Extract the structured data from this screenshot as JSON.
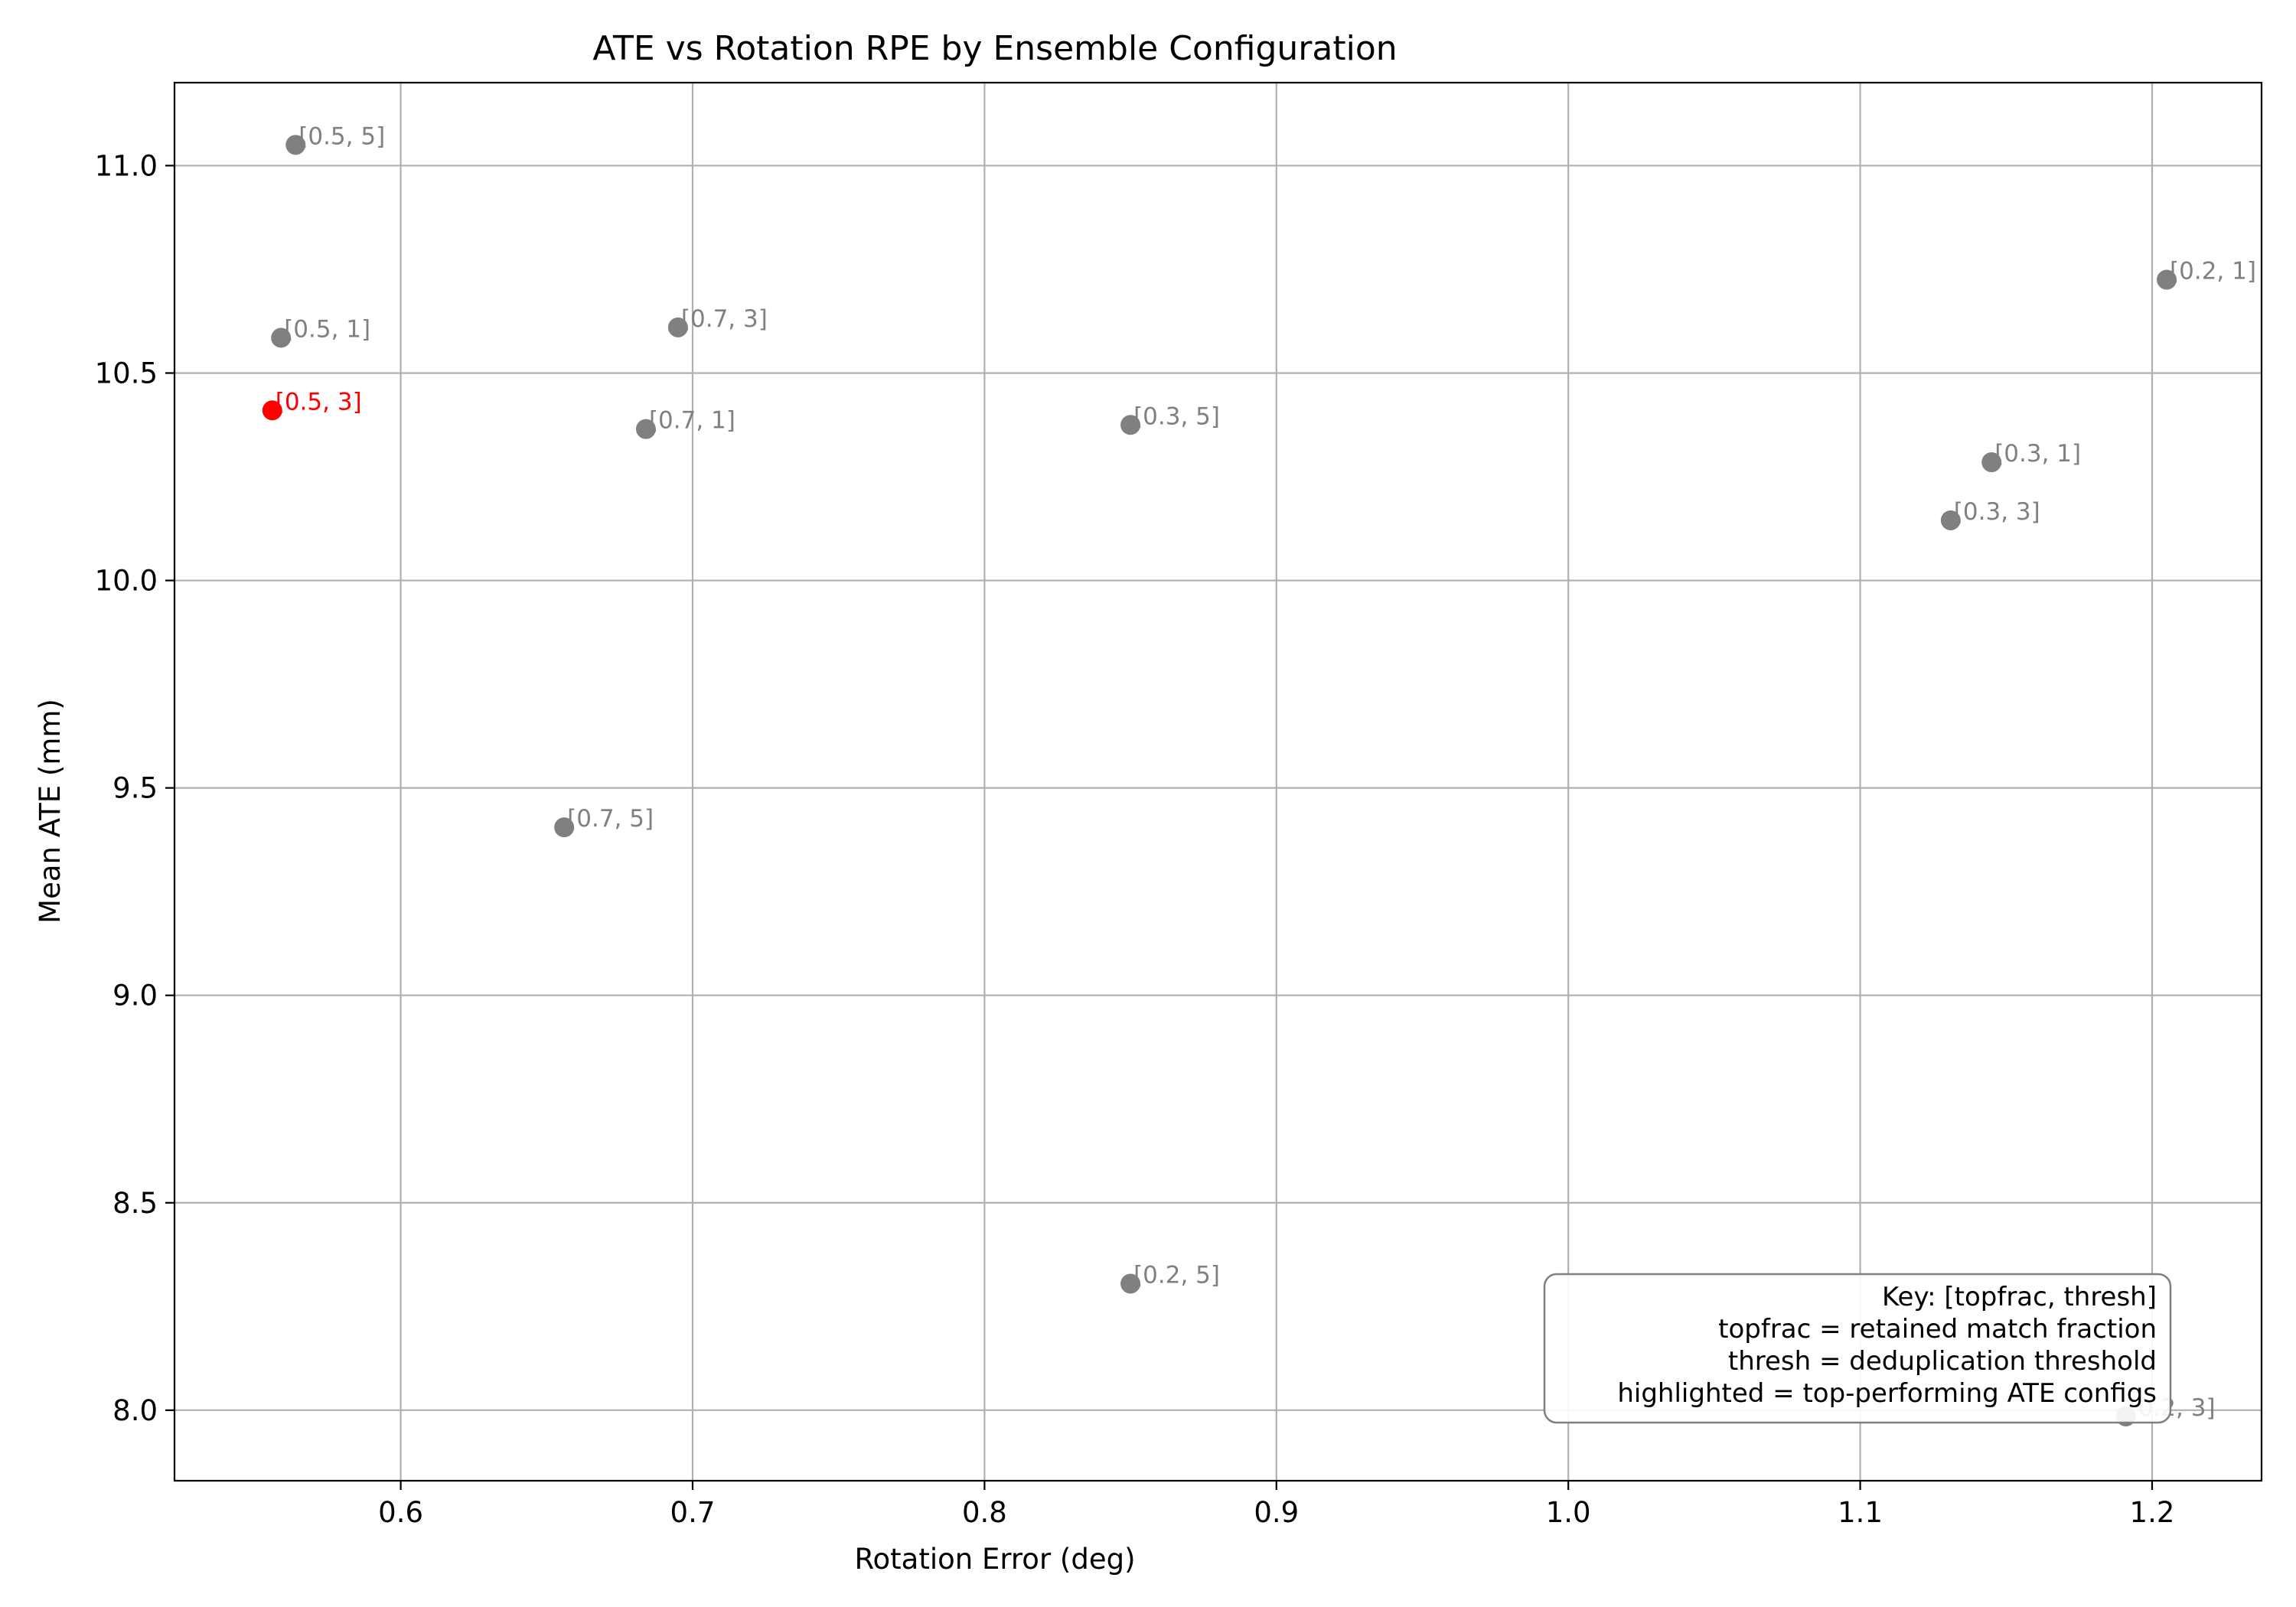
{
  "chart_data": {
    "type": "scatter",
    "title": "ATE vs Rotation RPE by Ensemble Configuration",
    "xlabel": "Rotation Error (deg)",
    "ylabel": "Mean ATE (mm)",
    "xlim": [
      0.5225,
      1.2375
    ],
    "ylim": [
      7.83,
      11.2
    ],
    "xticks": [
      0.6,
      0.7,
      0.8,
      0.9,
      1.0,
      1.1,
      1.2
    ],
    "xtick_labels": [
      "0.6",
      "0.7",
      "0.8",
      "0.9",
      "1.0",
      "1.1",
      "1.2"
    ],
    "yticks": [
      8.0,
      8.5,
      9.0,
      9.5,
      10.0,
      10.5,
      11.0
    ],
    "ytick_labels": [
      "8.0",
      "8.5",
      "9.0",
      "9.5",
      "10.0",
      "10.5",
      "11.0"
    ],
    "grid": true,
    "colors": {
      "default": "#808080",
      "highlight": "#ff0000"
    },
    "points": [
      {
        "x": 0.564,
        "y": 11.05,
        "label": "[0.5, 5]",
        "highlighted": false
      },
      {
        "x": 0.559,
        "y": 10.585,
        "label": "[0.5, 1]",
        "highlighted": false
      },
      {
        "x": 0.556,
        "y": 10.41,
        "label": "[0.5, 3]",
        "highlighted": true
      },
      {
        "x": 0.695,
        "y": 10.61,
        "label": "[0.7, 3]",
        "highlighted": false
      },
      {
        "x": 0.684,
        "y": 10.365,
        "label": "[0.7, 1]",
        "highlighted": false
      },
      {
        "x": 0.656,
        "y": 9.405,
        "label": "[0.7, 5]",
        "highlighted": false
      },
      {
        "x": 0.85,
        "y": 10.375,
        "label": "[0.3, 5]",
        "highlighted": false
      },
      {
        "x": 0.85,
        "y": 8.305,
        "label": "[0.2, 5]",
        "highlighted": false
      },
      {
        "x": 1.205,
        "y": 10.725,
        "label": "[0.2, 1]",
        "highlighted": false
      },
      {
        "x": 1.145,
        "y": 10.285,
        "label": "[0.3, 1]",
        "highlighted": false
      },
      {
        "x": 1.131,
        "y": 10.145,
        "label": "[0.3, 3]",
        "highlighted": false
      },
      {
        "x": 1.191,
        "y": 7.985,
        "label": "[0.2, 3]",
        "highlighted": false
      }
    ],
    "key_box": {
      "placement": "lower-right",
      "lines": [
        "Key: [topfrac, thresh]",
        "topfrac = retained match fraction",
        "thresh = deduplication threshold",
        "highlighted = top-performing ATE configs"
      ]
    }
  }
}
